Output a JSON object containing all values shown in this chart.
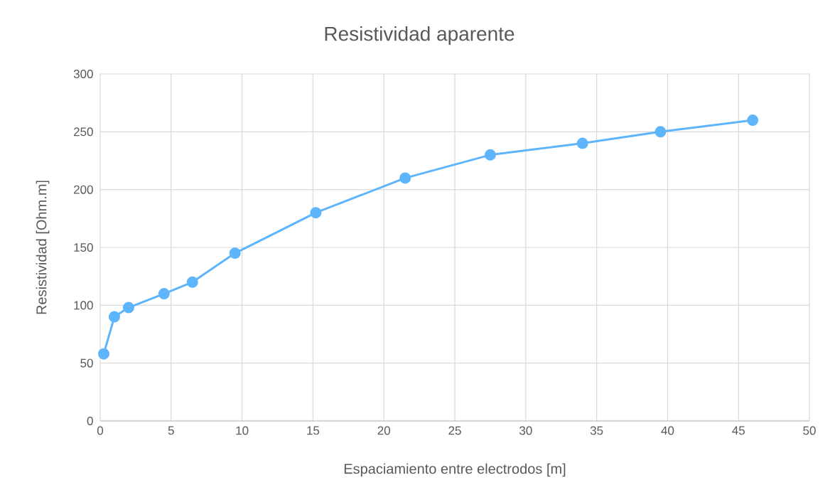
{
  "chart_data": {
    "type": "line",
    "title": "Resistividad aparente",
    "xlabel": "Espaciamiento entre electrodos [m]",
    "ylabel": "Resistividad [Ohm.m]",
    "x": [
      0.25,
      1,
      2,
      4.5,
      6.5,
      9.5,
      15.2,
      21.5,
      27.5,
      34,
      39.5,
      46
    ],
    "values": [
      58,
      90,
      98,
      110,
      120,
      145,
      180,
      210,
      230,
      240,
      250,
      260
    ],
    "color": "#5fb5fc",
    "marker": "circle",
    "line_style": "solid",
    "grid": true,
    "xlim": [
      0,
      50
    ],
    "ylim": [
      0,
      300
    ],
    "xticks": [
      0,
      5,
      10,
      15,
      20,
      25,
      30,
      35,
      40,
      45,
      50
    ],
    "yticks": [
      0,
      50,
      100,
      150,
      200,
      250,
      300
    ]
  }
}
